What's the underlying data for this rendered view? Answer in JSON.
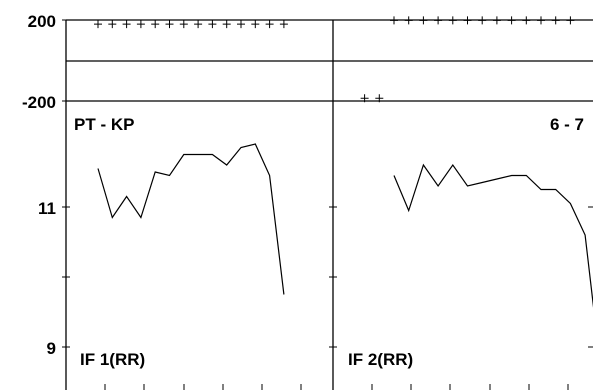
{
  "chart_data": [
    {
      "panel": "left",
      "type": "line",
      "upper_panel": {
        "type": "scatter",
        "marker": "+",
        "ylim": [
          -200,
          200
        ],
        "y_ticks": [
          "200",
          "-200"
        ],
        "points": [
          [
            0,
            180
          ],
          [
            1,
            180
          ],
          [
            2,
            180
          ],
          [
            3,
            180
          ],
          [
            4,
            180
          ],
          [
            5,
            180
          ],
          [
            6,
            180
          ],
          [
            7,
            180
          ],
          [
            8,
            180
          ],
          [
            9,
            180
          ],
          [
            10,
            180
          ],
          [
            11,
            180
          ],
          [
            12,
            180
          ],
          [
            13,
            180
          ]
        ]
      },
      "lower_panel": {
        "type": "line",
        "y_ticks": [
          "11",
          "9"
        ],
        "title_left": "PT - KP",
        "label_bottom": "IF 1(RR)",
        "points": [
          [
            0,
            11.55
          ],
          [
            1,
            10.85
          ],
          [
            2,
            11.15
          ],
          [
            3,
            10.85
          ],
          [
            4,
            11.5
          ],
          [
            5,
            11.45
          ],
          [
            6,
            11.75
          ],
          [
            7,
            11.75
          ],
          [
            8,
            11.75
          ],
          [
            9,
            11.6
          ],
          [
            10,
            11.85
          ],
          [
            11,
            11.9
          ],
          [
            12,
            11.45
          ],
          [
            13,
            9.75
          ]
        ]
      }
    },
    {
      "panel": "right",
      "type": "line",
      "upper_panel": {
        "type": "scatter",
        "marker": "+",
        "ylim": [
          -200,
          200
        ],
        "points": [
          [
            -2,
            -182
          ],
          [
            -1,
            -182
          ],
          [
            0,
            198
          ],
          [
            1,
            198
          ],
          [
            2,
            198
          ],
          [
            3,
            198
          ],
          [
            4,
            198
          ],
          [
            5,
            198
          ],
          [
            6,
            198
          ],
          [
            7,
            198
          ],
          [
            8,
            198
          ],
          [
            9,
            198
          ],
          [
            10,
            198
          ],
          [
            11,
            198
          ],
          [
            12,
            198
          ]
        ]
      },
      "lower_panel": {
        "type": "line",
        "title_right": "6 - 7",
        "label_bottom": "IF 2(RR)",
        "points": [
          [
            0,
            11.45
          ],
          [
            1,
            10.95
          ],
          [
            2,
            11.6
          ],
          [
            3,
            11.3
          ],
          [
            4,
            11.6
          ],
          [
            5,
            11.3
          ],
          [
            6,
            11.35
          ],
          [
            7,
            11.4
          ],
          [
            8,
            11.45
          ],
          [
            9,
            11.45
          ],
          [
            10,
            11.25
          ],
          [
            11,
            11.25
          ],
          [
            12,
            11.05
          ],
          [
            13,
            10.6
          ],
          [
            14,
            8.8
          ]
        ]
      }
    }
  ]
}
